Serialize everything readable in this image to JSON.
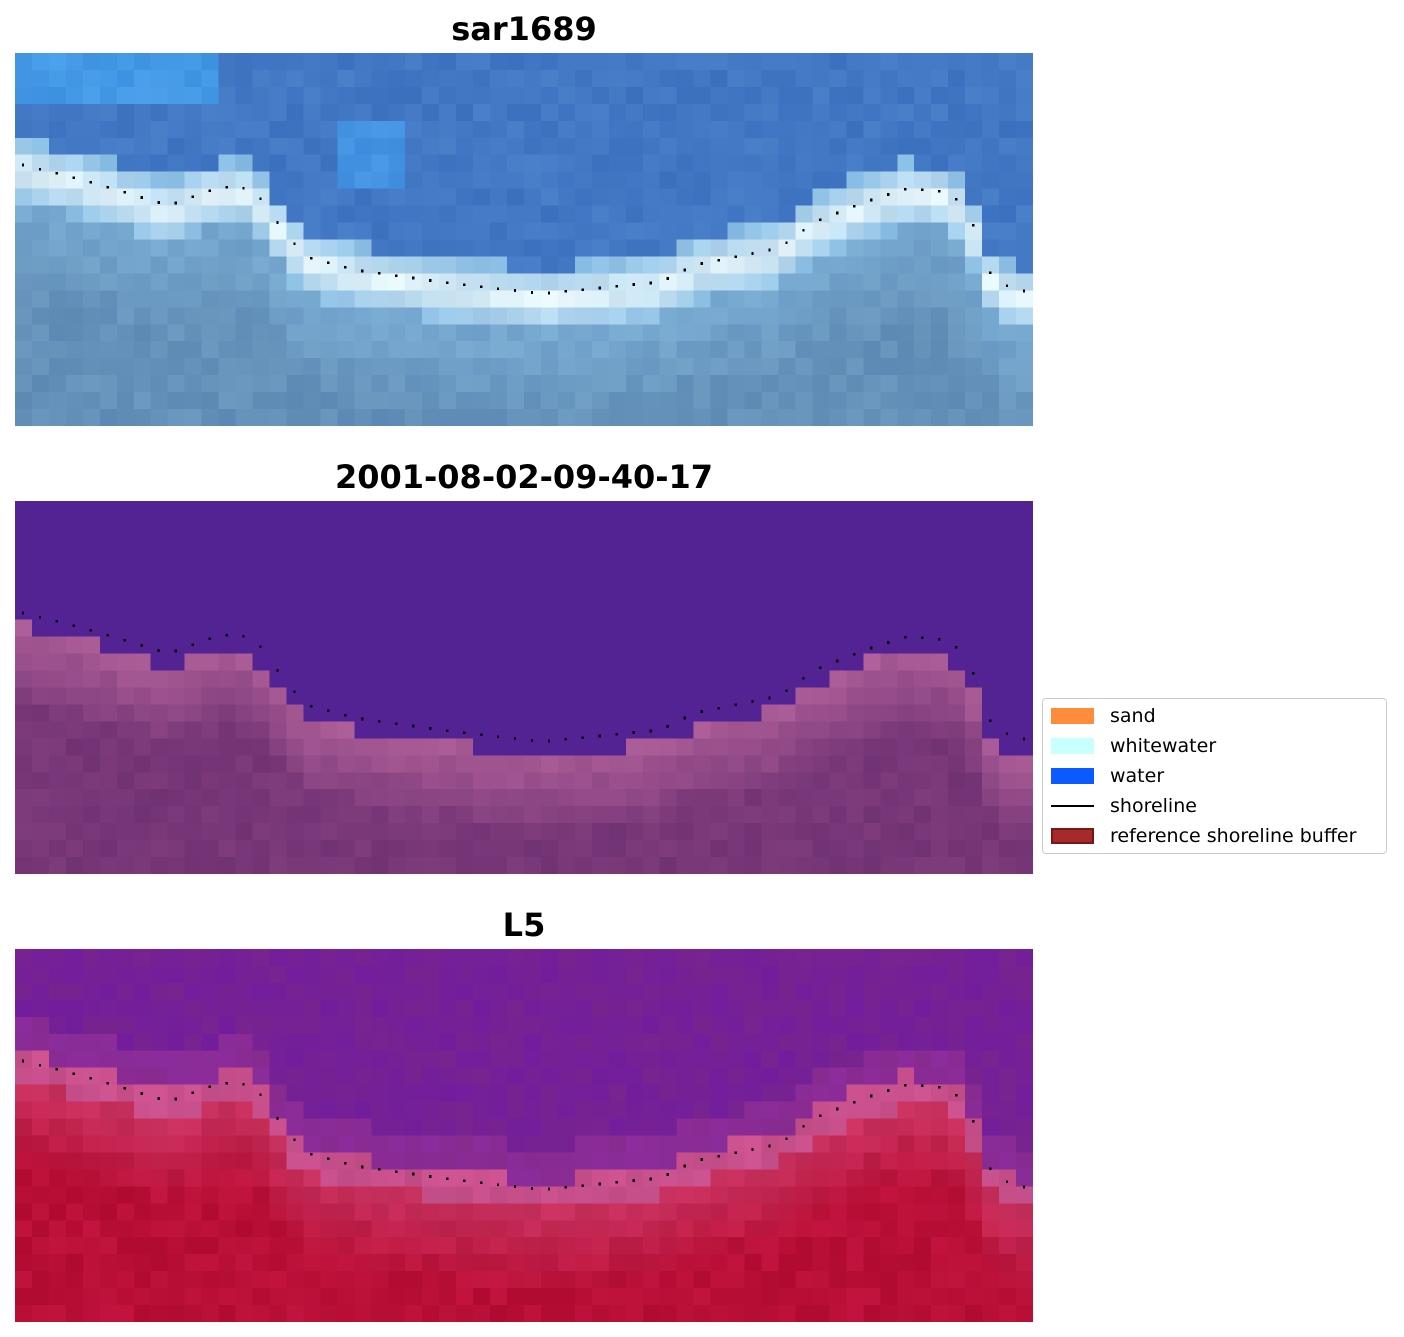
{
  "panels": [
    {
      "title": "sar1689",
      "style": "rgb"
    },
    {
      "title": "2001-08-02-09-40-17",
      "style": "classified"
    },
    {
      "title": "L5",
      "style": "index"
    }
  ],
  "legend": {
    "items": [
      {
        "label": "sand",
        "color": "#ff8c3a",
        "kind": "patch"
      },
      {
        "label": "whitewater",
        "color": "#c8ffff",
        "kind": "patch"
      },
      {
        "label": "water",
        "color": "#0a5aff",
        "kind": "patch"
      },
      {
        "label": "shoreline",
        "color": "#000000",
        "kind": "line"
      },
      {
        "label": "reference shoreline buffer",
        "color": "#a52a2a",
        "kind": "patch"
      }
    ]
  },
  "colors": {
    "classified_water": "#532394",
    "shoreline_dots": "#000000"
  }
}
